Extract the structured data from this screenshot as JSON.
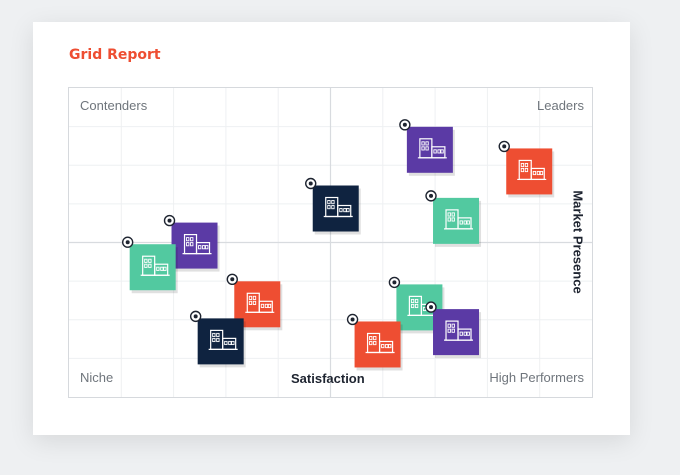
{
  "report": {
    "title": "Grid Report"
  },
  "chart_data": {
    "type": "scatter",
    "title": "Grid Report",
    "xlabel": "Satisfaction",
    "ylabel": "Market Presence",
    "quadrants": {
      "top_left": "Contenders",
      "top_right": "Leaders",
      "bottom_left": "Niche",
      "bottom_right": "High Performers"
    },
    "xlim": [
      0,
      100
    ],
    "ylim": [
      0,
      100
    ],
    "grid": true,
    "colors": {
      "red": "#ee4e32",
      "green": "#52c9a0",
      "purple": "#5b3aa5",
      "navy": "#0f2340"
    },
    "points": [
      {
        "x": 69,
        "y": 80,
        "color": "purple"
      },
      {
        "x": 88,
        "y": 73,
        "color": "red"
      },
      {
        "x": 51,
        "y": 61,
        "color": "navy"
      },
      {
        "x": 74,
        "y": 57,
        "color": "green"
      },
      {
        "x": 24,
        "y": 49,
        "color": "purple"
      },
      {
        "x": 16,
        "y": 42,
        "color": "green"
      },
      {
        "x": 36,
        "y": 30,
        "color": "red"
      },
      {
        "x": 29,
        "y": 18,
        "color": "navy"
      },
      {
        "x": 67,
        "y": 29,
        "color": "green"
      },
      {
        "x": 74,
        "y": 21,
        "color": "purple"
      },
      {
        "x": 59,
        "y": 17,
        "color": "red"
      }
    ]
  }
}
